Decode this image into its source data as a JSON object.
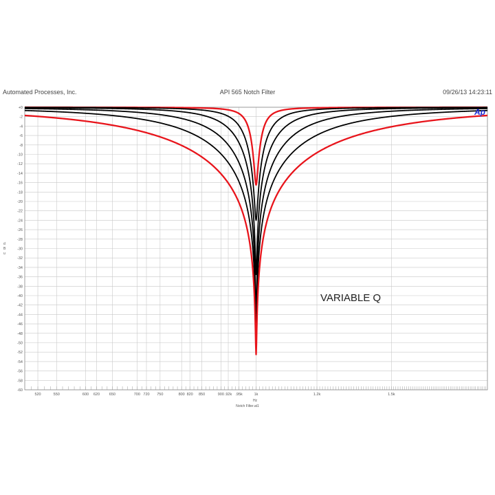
{
  "header": {
    "left": "Automated Processes, Inc.",
    "center": "API 565 Notch Filter",
    "right": "09/26/13 14:23:11"
  },
  "chart_data": {
    "type": "line",
    "ylabel": "d B u",
    "xlabel": "Hz",
    "footer_label": "Notch Filter.at1",
    "annotation": "VARIABLE Q",
    "logo": "Ap",
    "xscale": "log",
    "xlim": [
      500,
      2000
    ],
    "ylim": [
      -60,
      0
    ],
    "grid": true,
    "x_ticks": [
      {
        "value": 520,
        "label": "520"
      },
      {
        "value": 550,
        "label": "550"
      },
      {
        "value": 600,
        "label": "600"
      },
      {
        "value": 620,
        "label": "620"
      },
      {
        "value": 650,
        "label": "650"
      },
      {
        "value": 700,
        "label": "700"
      },
      {
        "value": 720,
        "label": "720"
      },
      {
        "value": 750,
        "label": "750"
      },
      {
        "value": 800,
        "label": "800"
      },
      {
        "value": 820,
        "label": "820"
      },
      {
        "value": 850,
        "label": "850"
      },
      {
        "value": 900,
        "label": "900"
      },
      {
        "value": 920,
        "label": ".92k"
      },
      {
        "value": 950,
        "label": ".95k"
      },
      {
        "value": 1000,
        "label": "1k"
      },
      {
        "value": 1200,
        "label": "1.2k"
      },
      {
        "value": 1500,
        "label": "1.5k"
      }
    ],
    "y_ticks": [
      {
        "value": 0,
        "label": "+0"
      },
      {
        "value": -2,
        "label": "-2"
      },
      {
        "value": -4,
        "label": "-4"
      },
      {
        "value": -6,
        "label": "-6"
      },
      {
        "value": -8,
        "label": "-8"
      },
      {
        "value": -10,
        "label": "-10"
      },
      {
        "value": -12,
        "label": "-12"
      },
      {
        "value": -14,
        "label": "-14"
      },
      {
        "value": -16,
        "label": "-16"
      },
      {
        "value": -18,
        "label": "-18"
      },
      {
        "value": -20,
        "label": "-20"
      },
      {
        "value": -22,
        "label": "-22"
      },
      {
        "value": -24,
        "label": "-24"
      },
      {
        "value": -26,
        "label": "-26"
      },
      {
        "value": -28,
        "label": "-28"
      },
      {
        "value": -30,
        "label": "-30"
      },
      {
        "value": -32,
        "label": "-32"
      },
      {
        "value": -34,
        "label": "-34"
      },
      {
        "value": -36,
        "label": "-36"
      },
      {
        "value": -38,
        "label": "-38"
      },
      {
        "value": -40,
        "label": "-40"
      },
      {
        "value": -42,
        "label": "-42"
      },
      {
        "value": -44,
        "label": "-44"
      },
      {
        "value": -46,
        "label": "-46"
      },
      {
        "value": -48,
        "label": "-48"
      },
      {
        "value": -50,
        "label": "-50"
      },
      {
        "value": -52,
        "label": "-52"
      },
      {
        "value": -54,
        "label": "-54"
      },
      {
        "value": -56,
        "label": "-56"
      },
      {
        "value": -58,
        "label": "-58"
      },
      {
        "value": -60,
        "label": "-60"
      }
    ],
    "series": [
      {
        "color": "#e8141b",
        "center_hz": 1000,
        "depth_db": -16.5,
        "q": 16
      },
      {
        "color": "#000000",
        "center_hz": 1000,
        "depth_db": -24,
        "q": 8
      },
      {
        "color": "#000000",
        "center_hz": 1000,
        "depth_db": -35.5,
        "q": 4.5
      },
      {
        "color": "#000000",
        "center_hz": 1000,
        "depth_db": -45.5,
        "q": 2.6
      },
      {
        "color": "#000000",
        "center_hz": 1000,
        "depth_db": -49.5,
        "q": 1.6
      },
      {
        "color": "#e8141b",
        "center_hz": 1000,
        "depth_db": -52.5,
        "q": 0.95
      }
    ]
  }
}
